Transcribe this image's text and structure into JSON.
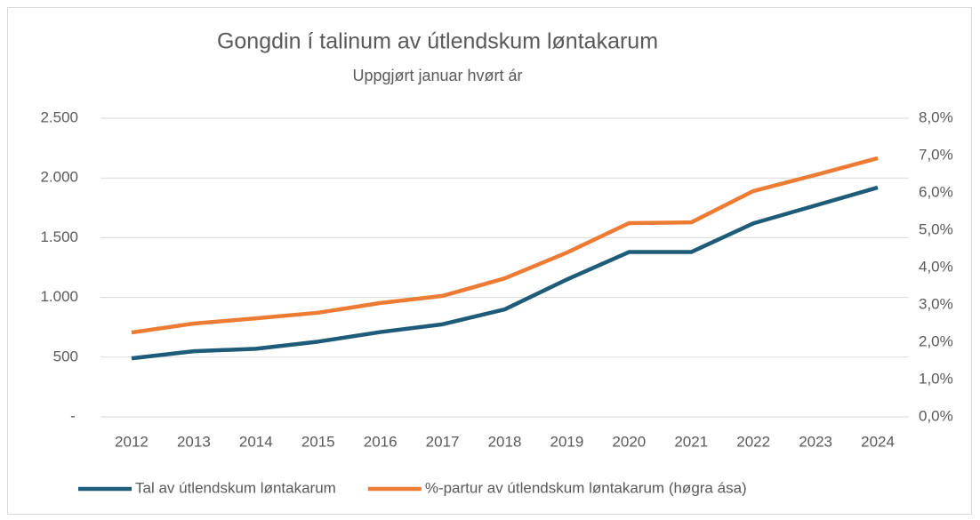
{
  "chart_data": {
    "type": "line",
    "title": "Gongdin í talinum av útlendskum løntakarum",
    "subtitle": "Uppgjørt januar hvørt ár",
    "categories": [
      "2012",
      "2013",
      "2014",
      "2015",
      "2016",
      "2017",
      "2018",
      "2019",
      "2020",
      "2021",
      "2022",
      "2023",
      "2024"
    ],
    "series": [
      {
        "name": "Tal av útlendskum løntakarum",
        "color": "#1d5b79",
        "values": [
          490,
          550,
          570,
          630,
          710,
          775,
          900,
          1150,
          1380,
          1380,
          1620,
          1770,
          1920
        ]
      },
      {
        "name": "%-partur av útlendskum løntakarum (høgra ása)",
        "color": "#ee7b33",
        "axis": "y2",
        "values": [
          2.26,
          2.5,
          2.64,
          2.79,
          3.05,
          3.24,
          3.71,
          4.4,
          5.19,
          5.21,
          6.05,
          6.48,
          6.93
        ]
      }
    ],
    "ylim": [
      0,
      2500
    ],
    "yticks": [
      {
        "value": 0,
        "label": "-"
      },
      500,
      {
        "value": 1000,
        "label": "1.000"
      },
      {
        "value": 1500,
        "label": "1.500"
      },
      {
        "value": 2000,
        "label": "2.000"
      },
      {
        "value": 2500,
        "label": "2.500"
      }
    ],
    "y2lim": [
      0,
      8
    ],
    "y2ticks": [
      {
        "value": 0,
        "label": "0,0%"
      },
      {
        "value": 1,
        "label": "1,0%"
      },
      {
        "value": 2,
        "label": "2,0%"
      },
      {
        "value": 3,
        "label": "3,0%"
      },
      {
        "value": 4,
        "label": "4,0%"
      },
      {
        "value": 5,
        "label": "5,0%"
      },
      {
        "value": 6,
        "label": "6,0%"
      },
      {
        "value": 7,
        "label": "7,0%"
      },
      {
        "value": 8,
        "label": "8,0%"
      }
    ],
    "grid": true,
    "legend": "bottom"
  }
}
